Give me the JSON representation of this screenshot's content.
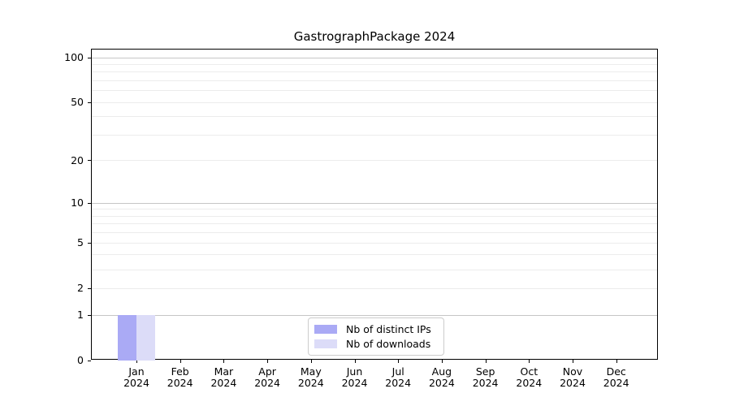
{
  "chart_data": {
    "type": "bar",
    "title": "GastrographPackage 2024",
    "year_label": "2024",
    "categories": [
      "Jan",
      "Feb",
      "Mar",
      "Apr",
      "May",
      "Jun",
      "Jul",
      "Aug",
      "Sep",
      "Oct",
      "Nov",
      "Dec"
    ],
    "series": [
      {
        "name": "Nb of distinct IPs",
        "color": "#aaaaf5",
        "values": [
          1,
          0,
          0,
          0,
          0,
          0,
          0,
          0,
          0,
          0,
          0,
          0
        ]
      },
      {
        "name": "Nb of downloads",
        "color": "#dcdcf8",
        "values": [
          1,
          0,
          0,
          0,
          0,
          0,
          0,
          0,
          0,
          0,
          0,
          0
        ]
      }
    ],
    "y_axis": {
      "scale": "log1p",
      "tick_values": [
        100,
        50,
        20,
        10,
        5,
        2,
        1,
        0
      ],
      "minor_gridlines": [
        2,
        3,
        4,
        5,
        6,
        7,
        8,
        9,
        20,
        30,
        40,
        50,
        60,
        70,
        80,
        90
      ],
      "major_gridlines": [
        1,
        10,
        100
      ],
      "ylim": [
        0,
        113
      ]
    },
    "xlabel": "",
    "ylabel": "",
    "grid": true,
    "grid_colors": {
      "minor": "#ececec",
      "major": "#c6c6c6"
    },
    "legend": {
      "position": "inside-bottom-center",
      "border_color": "#cccccc"
    }
  }
}
